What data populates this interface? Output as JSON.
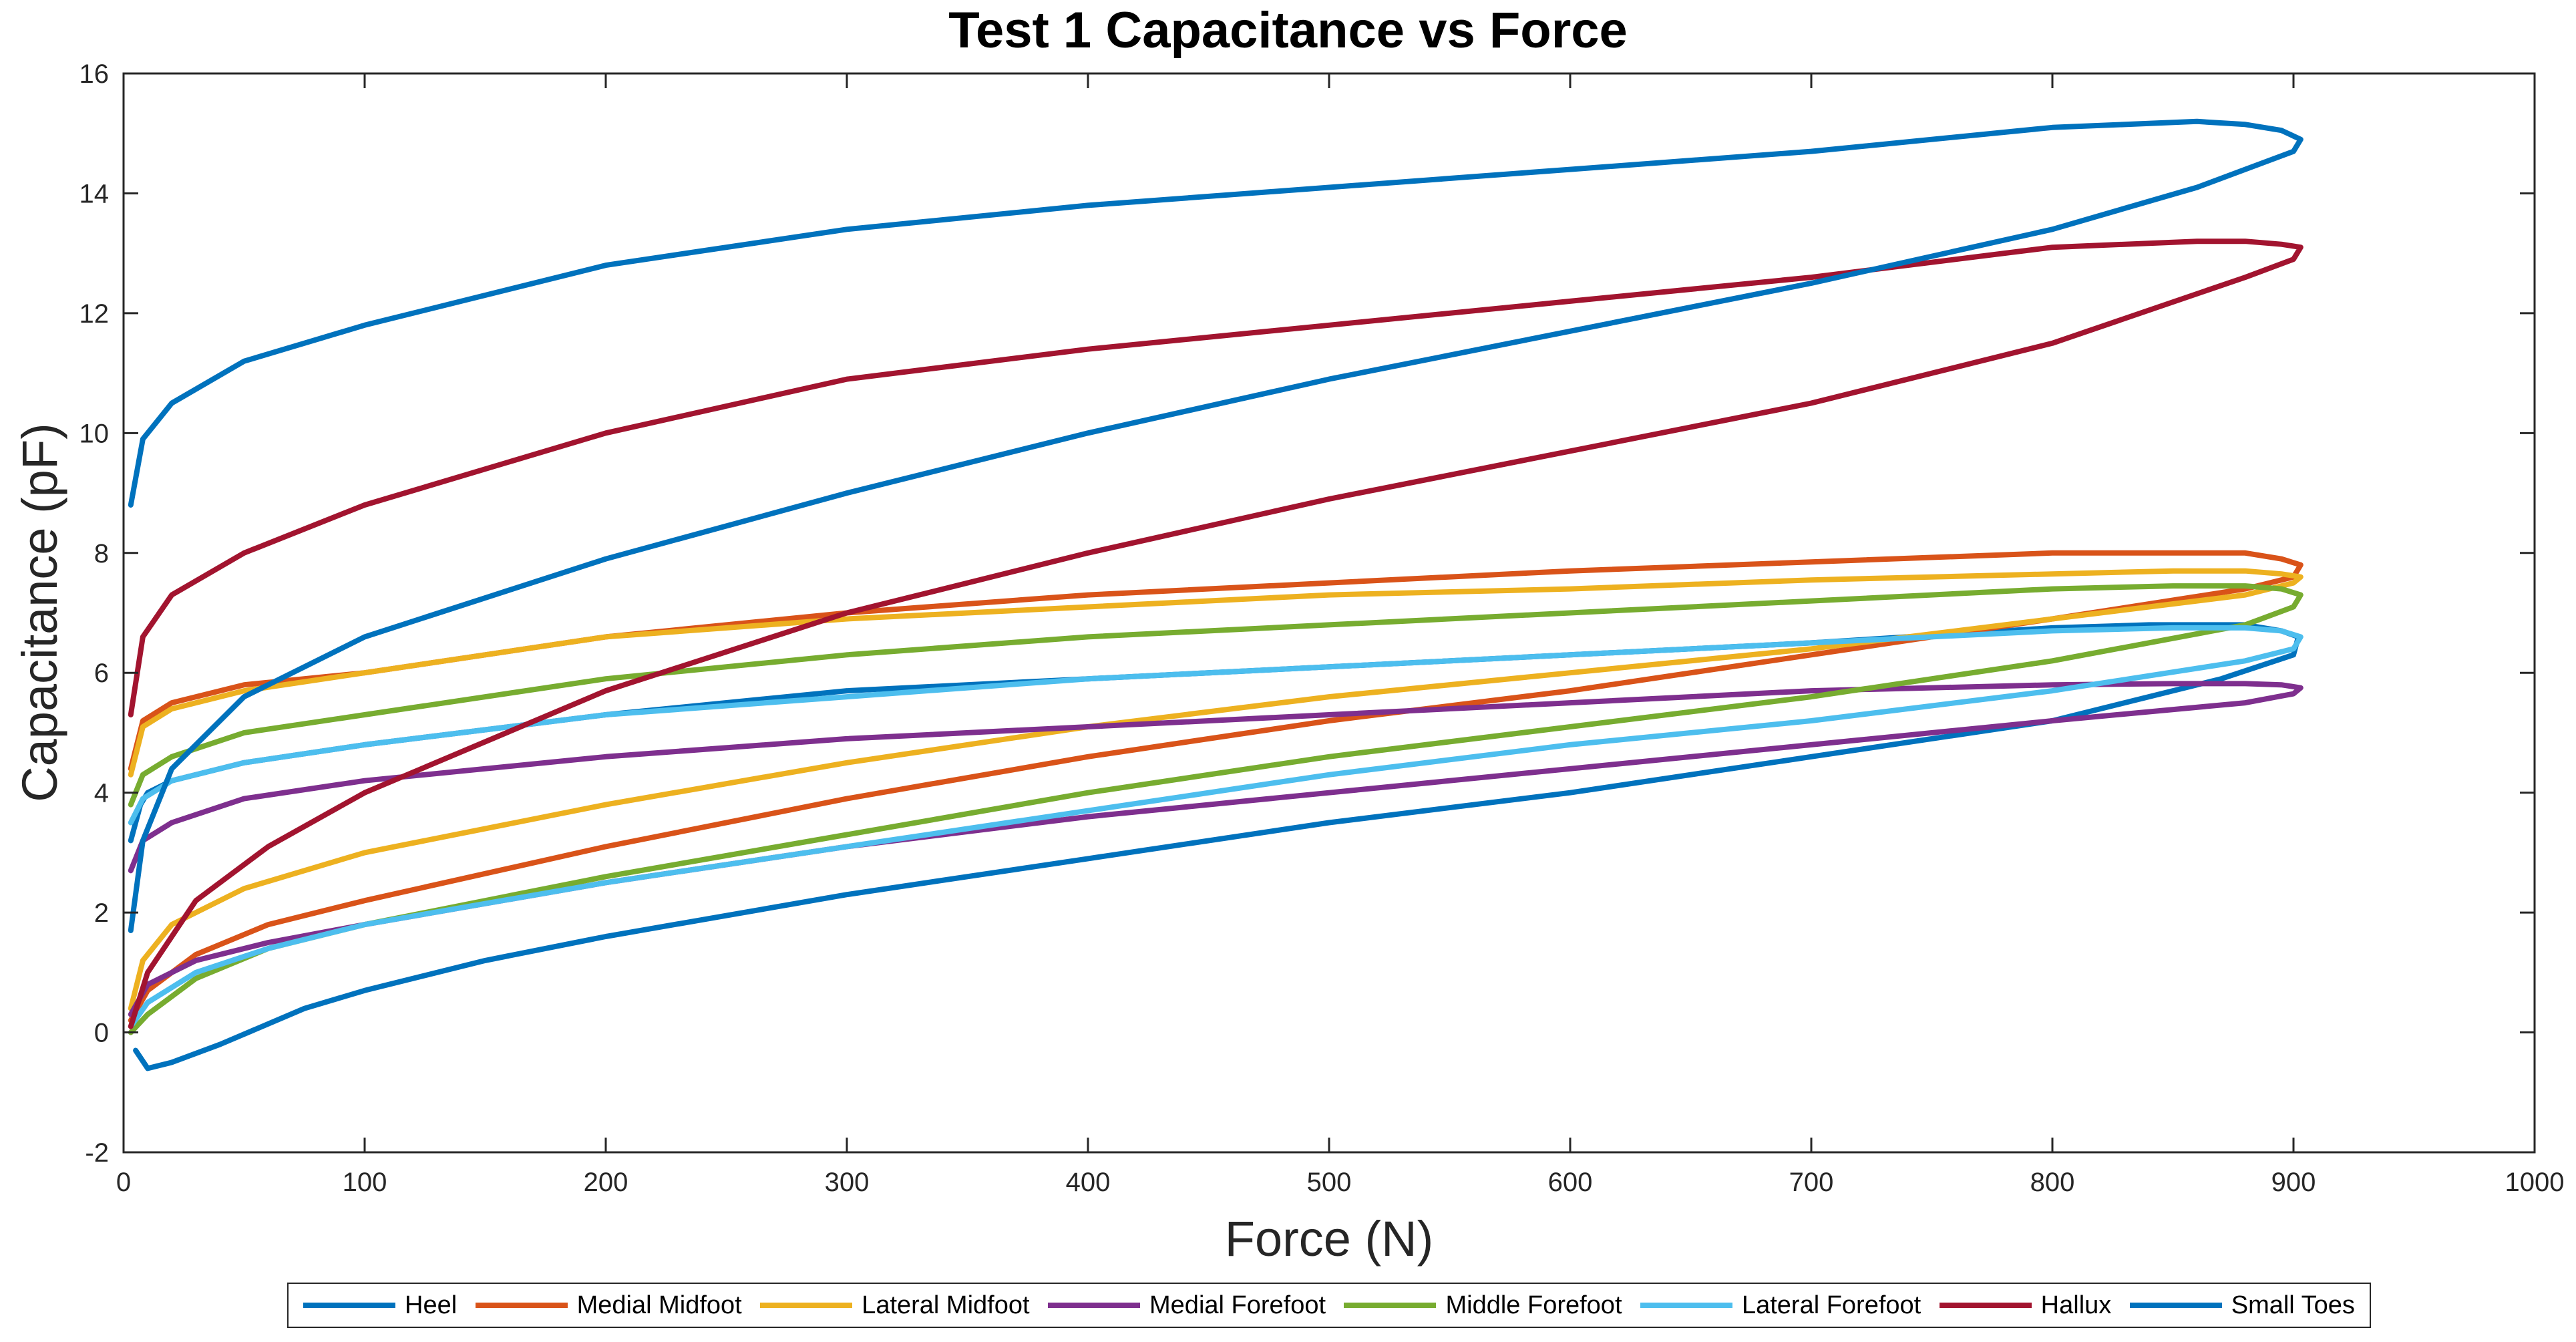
{
  "chart_data": {
    "type": "line",
    "title": "Test 1 Capacitance vs Force",
    "xlabel": "Force (N)",
    "ylabel": "Capacitance (pF)",
    "xlim": [
      0,
      1000
    ],
    "ylim": [
      -2,
      16
    ],
    "xticks": [
      0,
      100,
      200,
      300,
      400,
      500,
      600,
      700,
      800,
      900,
      1000
    ],
    "yticks": [
      -2,
      0,
      2,
      4,
      6,
      8,
      10,
      12,
      14,
      16
    ],
    "grid": false,
    "legend_position": "bottom-outside",
    "series": [
      {
        "name": "Heel",
        "color": "#0072BD",
        "x": [
          5,
          10,
          20,
          40,
          75,
          100,
          150,
          200,
          300,
          400,
          500,
          600,
          700,
          800,
          870,
          900,
          902,
          895,
          880,
          860,
          840,
          800,
          700,
          600,
          500,
          400,
          300,
          200,
          100,
          50,
          20,
          10,
          7,
          5,
          3
        ],
        "y": [
          -0.3,
          -0.6,
          -0.5,
          -0.2,
          0.4,
          0.7,
          1.2,
          1.6,
          2.3,
          2.9,
          3.5,
          4.0,
          4.6,
          5.2,
          5.9,
          6.3,
          6.6,
          6.7,
          6.8,
          6.8,
          6.8,
          6.75,
          6.5,
          6.3,
          6.1,
          5.9,
          5.7,
          5.3,
          4.8,
          4.5,
          4.2,
          4.0,
          3.8,
          3.5,
          3.2
        ]
      },
      {
        "name": "Medial Midfoot",
        "color": "#D95319",
        "x": [
          3,
          10,
          30,
          60,
          100,
          200,
          300,
          400,
          500,
          600,
          700,
          800,
          880,
          900,
          903,
          895,
          880,
          850,
          800,
          700,
          600,
          500,
          400,
          300,
          200,
          100,
          50,
          20,
          8,
          3
        ],
        "y": [
          0.2,
          0.7,
          1.3,
          1.8,
          2.2,
          3.1,
          3.9,
          4.6,
          5.2,
          5.7,
          6.3,
          6.9,
          7.4,
          7.6,
          7.8,
          7.9,
          8.0,
          8.0,
          8.0,
          7.85,
          7.7,
          7.5,
          7.3,
          7.0,
          6.6,
          6.0,
          5.8,
          5.5,
          5.2,
          4.4
        ]
      },
      {
        "name": "Lateral Midfoot",
        "color": "#EDB120",
        "x": [
          3,
          8,
          20,
          50,
          100,
          200,
          300,
          400,
          500,
          600,
          700,
          800,
          880,
          900,
          903,
          895,
          880,
          850,
          800,
          700,
          600,
          500,
          400,
          300,
          200,
          100,
          50,
          20,
          8,
          3
        ],
        "y": [
          0.4,
          1.2,
          1.8,
          2.4,
          3.0,
          3.8,
          4.5,
          5.1,
          5.6,
          6.0,
          6.4,
          6.9,
          7.3,
          7.5,
          7.6,
          7.65,
          7.7,
          7.7,
          7.65,
          7.55,
          7.4,
          7.3,
          7.1,
          6.9,
          6.6,
          6.0,
          5.7,
          5.4,
          5.1,
          4.3
        ]
      },
      {
        "name": "Medial Forefoot",
        "color": "#7E2F8E",
        "x": [
          3,
          10,
          30,
          60,
          100,
          200,
          300,
          400,
          500,
          600,
          700,
          800,
          880,
          900,
          903,
          895,
          880,
          850,
          800,
          700,
          600,
          500,
          400,
          300,
          200,
          100,
          50,
          20,
          8,
          3
        ],
        "y": [
          0.3,
          0.8,
          1.2,
          1.5,
          1.8,
          2.5,
          3.1,
          3.6,
          4.0,
          4.4,
          4.8,
          5.2,
          5.5,
          5.65,
          5.75,
          5.8,
          5.82,
          5.82,
          5.8,
          5.7,
          5.5,
          5.3,
          5.1,
          4.9,
          4.6,
          4.2,
          3.9,
          3.5,
          3.2,
          2.7
        ]
      },
      {
        "name": "Middle Forefoot",
        "color": "#77AC30",
        "x": [
          3,
          10,
          30,
          60,
          100,
          200,
          300,
          400,
          500,
          600,
          700,
          800,
          880,
          900,
          903,
          895,
          880,
          850,
          800,
          700,
          600,
          500,
          400,
          300,
          200,
          100,
          50,
          20,
          8,
          3
        ],
        "y": [
          0.0,
          0.3,
          0.9,
          1.4,
          1.8,
          2.6,
          3.3,
          4.0,
          4.6,
          5.1,
          5.6,
          6.2,
          6.8,
          7.1,
          7.3,
          7.4,
          7.45,
          7.45,
          7.4,
          7.2,
          7.0,
          6.8,
          6.6,
          6.3,
          5.9,
          5.3,
          5.0,
          4.6,
          4.3,
          3.8
        ]
      },
      {
        "name": "Lateral Forefoot",
        "color": "#4DBEEE",
        "x": [
          3,
          10,
          30,
          60,
          100,
          200,
          300,
          400,
          500,
          600,
          700,
          800,
          880,
          900,
          903,
          895,
          880,
          850,
          800,
          700,
          600,
          500,
          400,
          300,
          200,
          100,
          50,
          20,
          8,
          3
        ],
        "y": [
          0.1,
          0.5,
          1.0,
          1.4,
          1.8,
          2.5,
          3.1,
          3.7,
          4.3,
          4.8,
          5.2,
          5.7,
          6.2,
          6.4,
          6.6,
          6.7,
          6.75,
          6.75,
          6.7,
          6.5,
          6.3,
          6.1,
          5.9,
          5.6,
          5.3,
          4.8,
          4.5,
          4.2,
          3.9,
          3.5
        ]
      },
      {
        "name": "Hallux",
        "color": "#A2142F",
        "x": [
          3,
          10,
          30,
          60,
          100,
          200,
          300,
          400,
          500,
          600,
          700,
          800,
          880,
          900,
          903,
          895,
          880,
          860,
          800,
          700,
          600,
          500,
          400,
          300,
          200,
          100,
          50,
          20,
          8,
          3
        ],
        "y": [
          0.1,
          1.0,
          2.2,
          3.1,
          4.0,
          5.7,
          7.0,
          8.0,
          8.9,
          9.7,
          10.5,
          11.5,
          12.6,
          12.9,
          13.1,
          13.15,
          13.2,
          13.2,
          13.1,
          12.6,
          12.2,
          11.8,
          11.4,
          10.9,
          10.0,
          8.8,
          8.0,
          7.3,
          6.6,
          5.3
        ]
      },
      {
        "name": "Small Toes",
        "color": "#0072BD",
        "x": [
          3,
          8,
          20,
          50,
          100,
          200,
          300,
          400,
          500,
          600,
          700,
          800,
          860,
          900,
          903,
          895,
          880,
          860,
          800,
          700,
          600,
          500,
          400,
          300,
          200,
          100,
          50,
          20,
          8,
          3
        ],
        "y": [
          1.7,
          3.2,
          4.4,
          5.6,
          6.6,
          7.9,
          9.0,
          10.0,
          10.9,
          11.7,
          12.5,
          13.4,
          14.1,
          14.7,
          14.9,
          15.05,
          15.15,
          15.2,
          15.1,
          14.7,
          14.4,
          14.1,
          13.8,
          13.4,
          12.8,
          11.8,
          11.2,
          10.5,
          9.9,
          8.8
        ]
      }
    ]
  }
}
